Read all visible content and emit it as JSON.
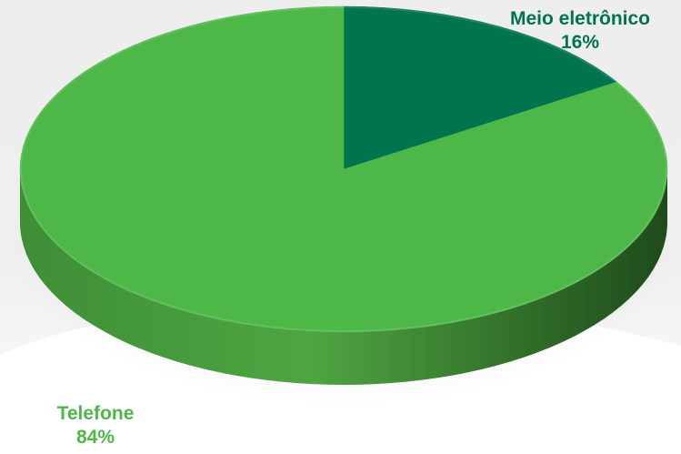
{
  "chart_data": {
    "type": "pie",
    "title": "",
    "slices": [
      {
        "name": "Meio eletrônico",
        "value": 16,
        "label": "16%",
        "color": "#00734F"
      },
      {
        "name": "Telefone",
        "value": 84,
        "label": "84%",
        "color": "#4DB748"
      }
    ],
    "style": "3d",
    "background": "#EFEFEF"
  }
}
